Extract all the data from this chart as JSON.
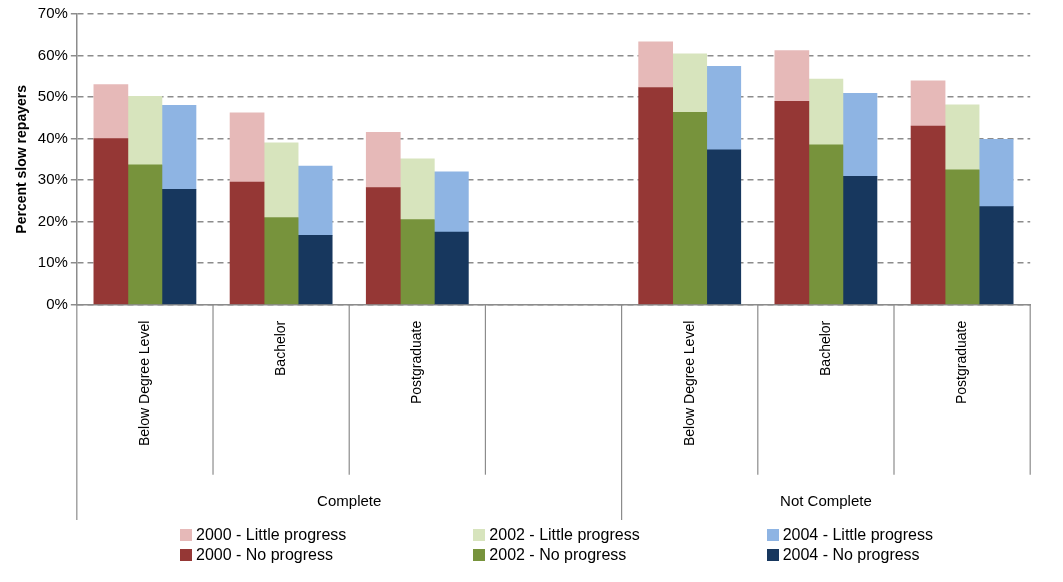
{
  "chart_data": {
    "type": "bar",
    "ylabel": "Percent slow repayers",
    "categories": [
      null,
      null,
      "Below Degree Level",
      null,
      null,
      null,
      "Bachelor",
      null,
      null,
      null,
      "Postgraduate",
      null,
      null,
      null,
      null,
      null,
      null,
      null,
      "Below Degree Level",
      null,
      null,
      null,
      "Bachelor",
      null,
      null,
      null,
      "Postgraduate",
      null,
      null
    ],
    "stacked": true,
    "series": [
      {
        "name": "2000 - No progress",
        "color": "#953735",
        "values": [
          null,
          40,
          null,
          null,
          null,
          29.5,
          null,
          null,
          null,
          28.2,
          null,
          null,
          null,
          null,
          null,
          null,
          null,
          52.3,
          null,
          null,
          null,
          49,
          null,
          null,
          null,
          43,
          null,
          null,
          null
        ]
      },
      {
        "name": "2000 - Little progress",
        "color": "#e6b9b8",
        "values": [
          null,
          13,
          null,
          null,
          null,
          16.7,
          null,
          null,
          null,
          13.3,
          null,
          null,
          null,
          null,
          null,
          null,
          null,
          11,
          null,
          null,
          null,
          12.2,
          null,
          null,
          null,
          10.9,
          null,
          null,
          null
        ]
      },
      {
        "name": "2002 - No progress",
        "color": "#77933c",
        "values": [
          null,
          null,
          33.7,
          null,
          null,
          null,
          21,
          null,
          null,
          null,
          20.5,
          null,
          null,
          null,
          null,
          null,
          null,
          null,
          46.3,
          null,
          null,
          null,
          38.5,
          null,
          null,
          null,
          32.5,
          null,
          null
        ]
      },
      {
        "name": "2002 - Little progress",
        "color": "#d7e4bd",
        "values": [
          null,
          null,
          16.5,
          null,
          null,
          null,
          18,
          null,
          null,
          null,
          14.6,
          null,
          null,
          null,
          null,
          null,
          null,
          null,
          14.1,
          null,
          null,
          null,
          15.8,
          null,
          null,
          null,
          15.6,
          null,
          null
        ]
      },
      {
        "name": "2004 - No progress",
        "color": "#17375e",
        "values": [
          null,
          null,
          null,
          27.8,
          null,
          null,
          null,
          16.7,
          null,
          null,
          null,
          17.5,
          null,
          null,
          null,
          null,
          null,
          null,
          null,
          37.3,
          null,
          null,
          null,
          30.9,
          null,
          null,
          null,
          23.6,
          null
        ]
      },
      {
        "name": "2004 - Little progress",
        "color": "#8eb4e3",
        "values": [
          null,
          null,
          null,
          20.2,
          null,
          null,
          null,
          16.7,
          null,
          null,
          null,
          14.5,
          null,
          null,
          null,
          null,
          null,
          null,
          null,
          20.1,
          null,
          null,
          null,
          20,
          null,
          null,
          null,
          16.2,
          null
        ]
      }
    ],
    "ylim": [
      0,
      70
    ],
    "yticks": [
      {
        "value": 0,
        "label": "0%"
      },
      {
        "value": 10,
        "label": "10%"
      },
      {
        "value": 20,
        "label": "20%"
      },
      {
        "value": 30,
        "label": "30%"
      },
      {
        "value": 40,
        "label": "40%"
      },
      {
        "value": 50,
        "label": "50%"
      },
      {
        "value": 60,
        "label": "60%"
      },
      {
        "value": 70,
        "label": "70%"
      }
    ],
    "grid": "y",
    "line_style": "dashed",
    "legend": "bottom",
    "annotations": [
      "Complete",
      "Not Complete"
    ]
  }
}
